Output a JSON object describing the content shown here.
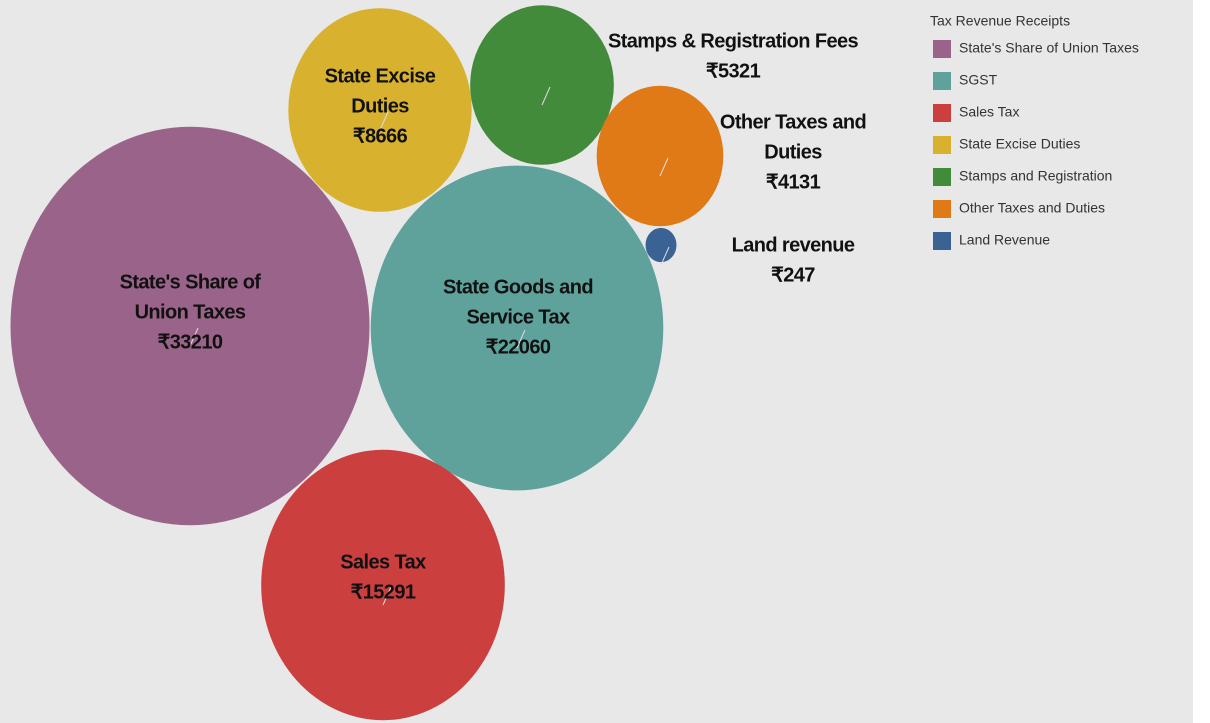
{
  "chart_data": {
    "type": "packed-bubble",
    "categories": [
      [
        "State's Share of",
        "Union Taxes"
      ],
      [
        "State Goods and",
        "Service Tax"
      ],
      [
        "Sales Tax"
      ],
      [
        "State Excise",
        "Duties"
      ],
      [
        "Stamps & Registration Fees"
      ],
      [
        "Other Taxes and",
        "Duties"
      ],
      [
        "Land revenue"
      ]
    ],
    "values": [
      33210,
      22060,
      15291,
      8666,
      5321,
      4131,
      247
    ],
    "value_labels": [
      "₹33210",
      "₹22060",
      "₹15291",
      "₹8666",
      "₹5321",
      "₹4131",
      "₹247"
    ],
    "colors": [
      "#9a6389",
      "#5fa19b",
      "#cc3f3f",
      "#d8b22f",
      "#428b3a",
      "#e07a17",
      "#3a6393"
    ],
    "legend": {
      "title": "Tax Revenue Receipts",
      "entries": [
        "State's Share of Union Taxes",
        "SGST",
        "Sales Tax",
        "State Excise Duties",
        "Stamps and Registration",
        "Other Taxes and Duties",
        "Land Revenue"
      ]
    }
  }
}
